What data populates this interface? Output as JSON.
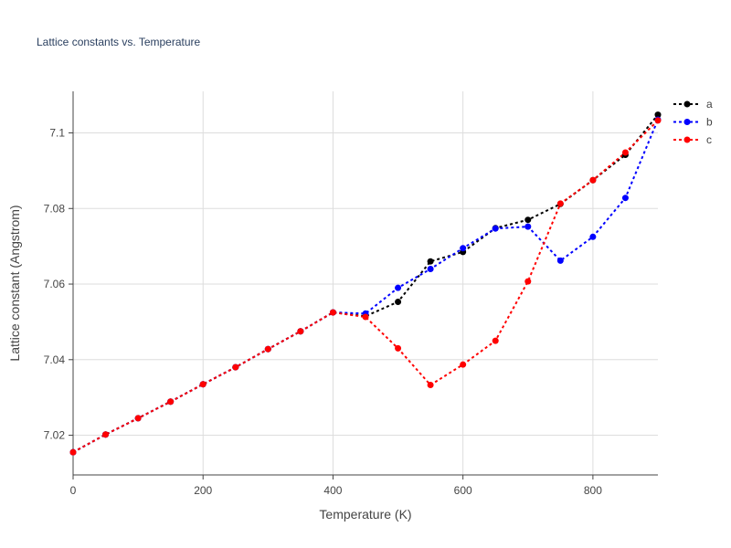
{
  "chart_data": {
    "type": "line",
    "title": "Lattice constants vs. Temperature",
    "xlabel": "Temperature (K)",
    "ylabel": "Lattice constant (Angstrom)",
    "xlim": [
      0,
      900
    ],
    "ylim": [
      7.0095,
      7.111
    ],
    "xticks": [
      0,
      200,
      400,
      600,
      800
    ],
    "yticks": [
      7.02,
      7.04,
      7.06,
      7.08,
      7.1
    ],
    "xtick_labels": [
      "0",
      "200",
      "400",
      "600",
      "800"
    ],
    "ytick_labels": [
      "7.02",
      "7.04",
      "7.06",
      "7.08",
      "7.1"
    ],
    "grid": true,
    "legend_position": "top-right",
    "x": [
      0,
      50,
      100,
      150,
      200,
      250,
      300,
      350,
      400,
      450,
      500,
      550,
      600,
      650,
      700,
      750,
      800,
      850,
      900
    ],
    "series": [
      {
        "name": "a",
        "color": "#000000",
        "values": [
          7.0155,
          7.0202,
          7.0245,
          7.0289,
          7.0335,
          7.038,
          7.0428,
          7.0475,
          7.0525,
          7.0515,
          7.0553,
          7.066,
          7.0685,
          7.0748,
          7.077,
          7.0812,
          7.0875,
          7.0942,
          7.1048
        ]
      },
      {
        "name": "b",
        "color": "#0000ff",
        "values": [
          7.0155,
          7.0202,
          7.0245,
          7.0289,
          7.0335,
          7.038,
          7.0428,
          7.0475,
          7.0525,
          7.0522,
          7.059,
          7.064,
          7.0695,
          7.0747,
          7.0752,
          7.0662,
          7.0725,
          7.0828,
          7.1035
        ]
      },
      {
        "name": "c",
        "color": "#ff0000",
        "values": [
          7.0155,
          7.0202,
          7.0245,
          7.0289,
          7.0335,
          7.038,
          7.0428,
          7.0475,
          7.0525,
          7.0513,
          7.043,
          7.0333,
          7.0387,
          7.045,
          7.0607,
          7.0813,
          7.0875,
          7.0948,
          7.1033
        ]
      }
    ]
  }
}
